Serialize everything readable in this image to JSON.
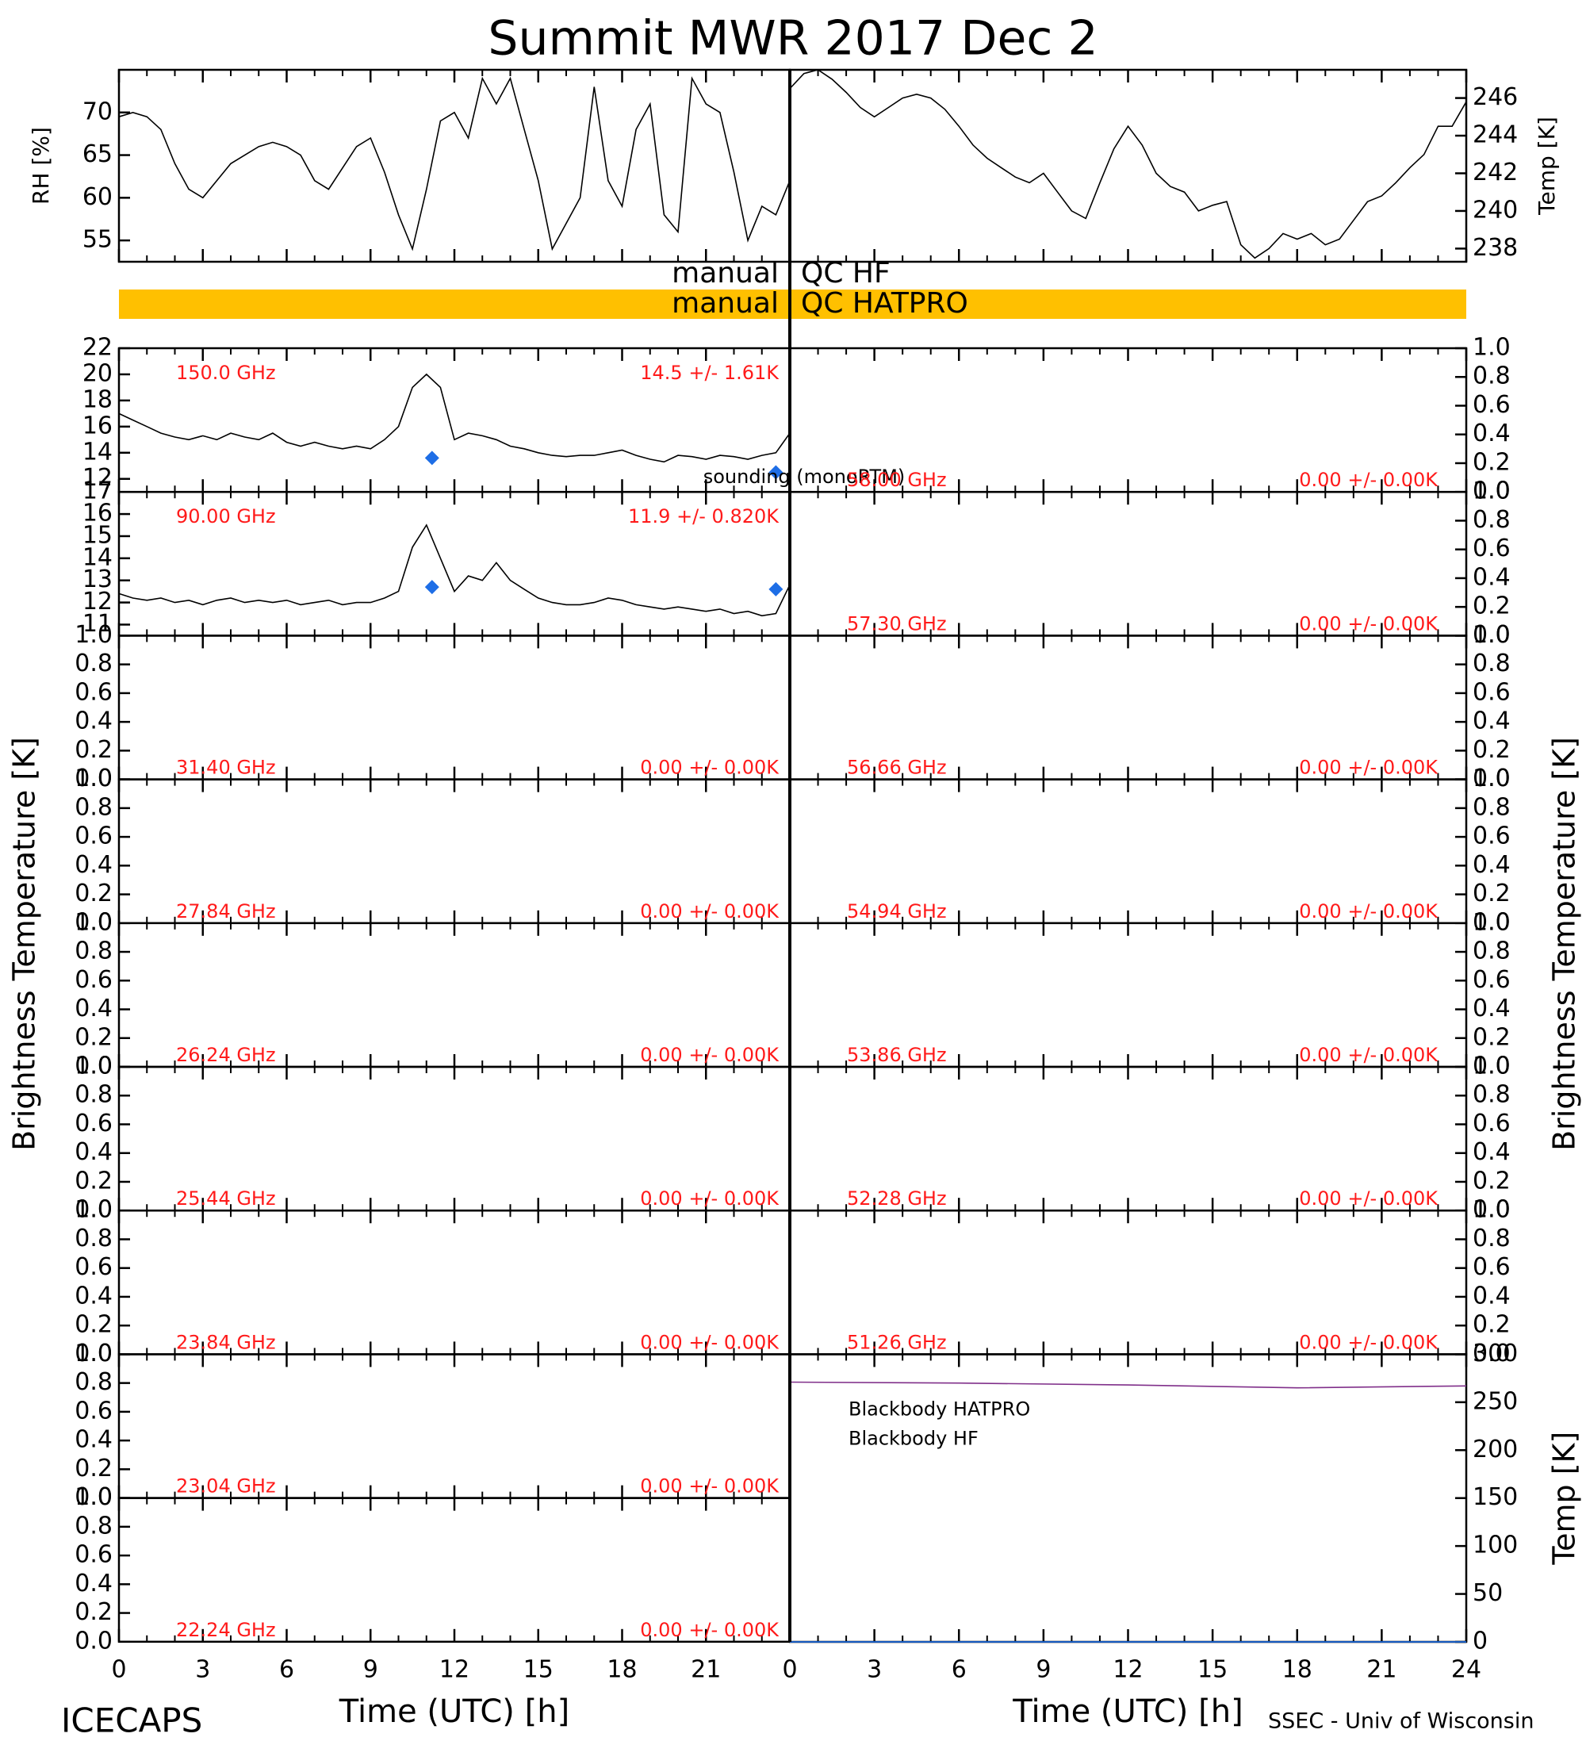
{
  "title": "Summit MWR 2017 Dec  2",
  "ylabel_left": "Brightness Temperature [K]",
  "ylabel_right": "Brightness Temperature [K]",
  "footer_left": "ICECAPS",
  "footer_right": "SSEC - Univ of Wisconsin",
  "qc": [
    {
      "label": "manual",
      "name": "QC HF"
    },
    {
      "label": "manual",
      "name": "QC HATPRO",
      "color": "#ffc000"
    }
  ],
  "chart_data": [
    {
      "type": "line",
      "ylabel": "RH [%]",
      "xlim": [
        0,
        24
      ],
      "ylim": [
        52.5,
        75
      ],
      "yticks": [
        55,
        60,
        65,
        70
      ],
      "x": [
        0,
        0.5,
        1,
        1.5,
        2,
        2.5,
        3,
        3.5,
        4,
        4.5,
        5,
        5.5,
        6,
        6.5,
        7,
        7.5,
        8,
        8.5,
        9,
        9.5,
        10,
        10.5,
        11,
        11.5,
        12,
        12.5,
        13,
        13.5,
        14,
        14.5,
        15,
        15.5,
        16,
        16.5,
        17,
        17.5,
        18,
        18.5,
        19,
        19.5,
        20,
        20.5,
        21,
        21.5,
        22,
        22.5,
        23,
        23.5,
        24
      ],
      "series": [
        {
          "color": "#000000",
          "values": [
            69.5,
            70,
            69.5,
            68,
            64,
            61,
            60,
            62,
            64,
            65,
            66,
            66.5,
            66,
            65,
            62,
            61,
            63.5,
            66,
            67,
            63,
            58,
            54,
            61,
            69,
            70,
            67,
            74,
            71,
            74,
            68,
            62,
            54,
            57,
            60,
            73,
            62,
            59,
            68,
            71,
            58,
            56,
            74,
            71,
            70,
            63,
            55,
            59,
            58,
            62
          ]
        }
      ]
    },
    {
      "type": "line",
      "ylabel": "Temp [K]",
      "xlim": [
        0,
        24
      ],
      "ylim": [
        237.3,
        247.5
      ],
      "yticks": [
        238,
        240,
        242,
        244,
        246
      ],
      "x": [
        0,
        0.5,
        1,
        1.5,
        2,
        2.5,
        3,
        3.5,
        4,
        4.5,
        5,
        5.5,
        6,
        6.5,
        7,
        7.5,
        8,
        8.5,
        9,
        9.5,
        10,
        10.5,
        11,
        11.5,
        12,
        12.5,
        13,
        13.5,
        14,
        14.5,
        15,
        15.5,
        16,
        16.5,
        17,
        17.5,
        18,
        18.5,
        19,
        19.5,
        20,
        20.5,
        21,
        21.5,
        22,
        22.5,
        23,
        23.5,
        24
      ],
      "series": [
        {
          "color": "#000000",
          "values": [
            246.5,
            247.3,
            247.5,
            247,
            246.3,
            245.5,
            245,
            245.5,
            246,
            246.2,
            246,
            245.4,
            244.5,
            243.5,
            242.8,
            242.3,
            241.8,
            241.5,
            242,
            241,
            240,
            239.6,
            241.5,
            243.3,
            244.5,
            243.5,
            242,
            241.3,
            241,
            240,
            240.3,
            240.5,
            238.2,
            237.5,
            238,
            238.8,
            238.5,
            238.8,
            238.2,
            238.5,
            239.5,
            240.5,
            240.8,
            241.5,
            242.3,
            243,
            244.5,
            244.5,
            245.8
          ]
        }
      ]
    },
    {
      "type": "line",
      "label": "150.0 GHz",
      "stats": "14.5 +/-  1.61K",
      "legend": "lower right",
      "xlim": [
        0,
        24
      ],
      "ylim": [
        11,
        22
      ],
      "yticks": [
        12,
        14,
        16,
        18,
        20,
        22
      ],
      "x": [
        0,
        0.5,
        1,
        1.5,
        2,
        2.5,
        3,
        3.5,
        4,
        4.5,
        5,
        5.5,
        6,
        6.5,
        7,
        7.5,
        8,
        8.5,
        9,
        9.5,
        10,
        10.5,
        11,
        11.5,
        12,
        12.5,
        13,
        13.5,
        14,
        14.5,
        15,
        15.5,
        16,
        16.5,
        17,
        17.5,
        18,
        18.5,
        19,
        19.5,
        20,
        20.5,
        21,
        21.5,
        22,
        22.5,
        23,
        23.5,
        24
      ],
      "series": [
        {
          "color": "#000000",
          "values": [
            17,
            16.5,
            16,
            15.5,
            15.2,
            15,
            15.3,
            15,
            15.5,
            15.2,
            15,
            15.5,
            14.8,
            14.5,
            14.8,
            14.5,
            14.3,
            14.5,
            14.3,
            15,
            16,
            19,
            20,
            19,
            15,
            15.5,
            15.3,
            15,
            14.5,
            14.3,
            14,
            13.8,
            13.7,
            13.8,
            13.8,
            14,
            14.2,
            13.8,
            13.5,
            13.3,
            13.8,
            13.7,
            13.5,
            13.8,
            13.7,
            13.5,
            13.8,
            14,
            15.5
          ]
        },
        {
          "name": "sounding (monoRTM)",
          "color": "#1e6ee6",
          "marker": "diamond",
          "x": [
            11.2,
            23.5
          ],
          "values": [
            13.6,
            12.5
          ]
        }
      ]
    },
    {
      "type": "line",
      "label": "90.00 GHz",
      "stats": "11.9 +/- 0.820K",
      "xlim": [
        0,
        24
      ],
      "ylim": [
        10.5,
        17
      ],
      "yticks": [
        11,
        12,
        13,
        14,
        15,
        16,
        17
      ],
      "x": [
        0,
        0.5,
        1,
        1.5,
        2,
        2.5,
        3,
        3.5,
        4,
        4.5,
        5,
        5.5,
        6,
        6.5,
        7,
        7.5,
        8,
        8.5,
        9,
        9.5,
        10,
        10.5,
        11,
        11.5,
        12,
        12.5,
        13,
        13.5,
        14,
        14.5,
        15,
        15.5,
        16,
        16.5,
        17,
        17.5,
        18,
        18.5,
        19,
        19.5,
        20,
        20.5,
        21,
        21.5,
        22,
        22.5,
        23,
        23.5,
        24
      ],
      "series": [
        {
          "color": "#000000",
          "values": [
            12.4,
            12.2,
            12.1,
            12.2,
            12,
            12.1,
            11.9,
            12.1,
            12.2,
            12,
            12.1,
            12,
            12.1,
            11.9,
            12,
            12.1,
            11.9,
            12,
            12,
            12.2,
            12.5,
            14.5,
            15.5,
            14,
            12.5,
            13.2,
            13,
            13.8,
            13,
            12.6,
            12.2,
            12,
            11.9,
            11.9,
            12,
            12.2,
            12.1,
            11.9,
            11.8,
            11.7,
            11.8,
            11.7,
            11.6,
            11.7,
            11.5,
            11.6,
            11.4,
            11.5,
            12.8
          ]
        },
        {
          "color": "#1e6ee6",
          "marker": "diamond",
          "x": [
            11.2,
            23.5
          ],
          "values": [
            12.7,
            12.6
          ]
        }
      ]
    },
    {
      "type": "line",
      "label": "31.40 GHz",
      "stats": "0.00 +/- 0.00K",
      "ylim": [
        0,
        1
      ],
      "yticks": [
        {
          "value": 0,
          "label": "0.0"
        },
        0.2,
        0.4,
        0.6,
        0.8,
        {
          "value": 1,
          "label": "1.0"
        }
      ]
    },
    {
      "type": "line",
      "label": "27.84 GHz",
      "stats": "0.00 +/- 0.00K",
      "ylim": [
        0,
        1
      ],
      "yticks": [
        {
          "value": 0,
          "label": "0.0"
        },
        0.2,
        0.4,
        0.6,
        0.8,
        {
          "value": 1,
          "label": "1.0"
        }
      ]
    },
    {
      "type": "line",
      "label": "26.24 GHz",
      "stats": "0.00 +/- 0.00K",
      "ylim": [
        0,
        1
      ],
      "yticks": [
        {
          "value": 0,
          "label": "0.0"
        },
        0.2,
        0.4,
        0.6,
        0.8,
        {
          "value": 1,
          "label": "1.0"
        }
      ]
    },
    {
      "type": "line",
      "label": "25.44 GHz",
      "stats": "0.00 +/- 0.00K",
      "ylim": [
        0,
        1
      ],
      "yticks": [
        {
          "value": 0,
          "label": "0.0"
        },
        0.2,
        0.4,
        0.6,
        0.8,
        {
          "value": 1,
          "label": "1.0"
        }
      ]
    },
    {
      "type": "line",
      "label": "23.84 GHz",
      "stats": "0.00 +/- 0.00K",
      "ylim": [
        0,
        1
      ],
      "yticks": [
        {
          "value": 0,
          "label": "0.0"
        },
        0.2,
        0.4,
        0.6,
        0.8,
        {
          "value": 1,
          "label": "1.0"
        }
      ]
    },
    {
      "type": "line",
      "label": "23.04 GHz",
      "stats": "0.00 +/- 0.00K",
      "ylim": [
        0,
        1
      ],
      "yticks": [
        {
          "value": 0,
          "label": "0.0"
        },
        0.2,
        0.4,
        0.6,
        0.8,
        {
          "value": 1,
          "label": "1.0"
        }
      ]
    },
    {
      "type": "line",
      "label": "22.24 GHz",
      "stats": "0.00 +/- 0.00K",
      "ylim": [
        0,
        1
      ],
      "yticks": [
        {
          "value": 0,
          "label": "0.0"
        },
        0.2,
        0.4,
        0.6,
        0.8,
        {
          "value": 1,
          "label": "1.0"
        }
      ],
      "xlim": [
        0,
        24
      ],
      "xticks": [
        0,
        3,
        6,
        9,
        12,
        15,
        18,
        21
      ],
      "xlabel": "Time (UTC) [h]"
    },
    {
      "type": "line",
      "label": "58.00 GHz",
      "stats": "0.00 +/- 0.00K",
      "ylim": [
        0,
        1
      ],
      "yticks": [
        {
          "value": 0,
          "label": "0.0"
        },
        0.2,
        0.4,
        0.6,
        0.8,
        {
          "value": 1,
          "label": "1.0"
        }
      ]
    },
    {
      "type": "line",
      "label": "57.30 GHz",
      "stats": "0.00 +/- 0.00K",
      "ylim": [
        0,
        1
      ],
      "yticks": [
        {
          "value": 0,
          "label": "0.0"
        },
        0.2,
        0.4,
        0.6,
        0.8,
        {
          "value": 1,
          "label": "1.0"
        }
      ]
    },
    {
      "type": "line",
      "label": "56.66 GHz",
      "stats": "0.00 +/- 0.00K",
      "ylim": [
        0,
        1
      ],
      "yticks": [
        {
          "value": 0,
          "label": "0.0"
        },
        0.2,
        0.4,
        0.6,
        0.8,
        {
          "value": 1,
          "label": "1.0"
        }
      ]
    },
    {
      "type": "line",
      "label": "54.94 GHz",
      "stats": "0.00 +/- 0.00K",
      "ylim": [
        0,
        1
      ],
      "yticks": [
        {
          "value": 0,
          "label": "0.0"
        },
        0.2,
        0.4,
        0.6,
        0.8,
        {
          "value": 1,
          "label": "1.0"
        }
      ]
    },
    {
      "type": "line",
      "label": "53.86 GHz",
      "stats": "0.00 +/- 0.00K",
      "ylim": [
        0,
        1
      ],
      "yticks": [
        {
          "value": 0,
          "label": "0.0"
        },
        0.2,
        0.4,
        0.6,
        0.8,
        {
          "value": 1,
          "label": "1.0"
        }
      ]
    },
    {
      "type": "line",
      "label": "52.28 GHz",
      "stats": "0.00 +/- 0.00K",
      "ylim": [
        0,
        1
      ],
      "yticks": [
        {
          "value": 0,
          "label": "0.0"
        },
        0.2,
        0.4,
        0.6,
        0.8,
        {
          "value": 1,
          "label": "1.0"
        }
      ]
    },
    {
      "type": "line",
      "label": "51.26 GHz",
      "stats": "0.00 +/- 0.00K",
      "ylim": [
        0,
        1
      ],
      "yticks": [
        {
          "value": 0,
          "label": "0.0"
        },
        0.2,
        0.4,
        0.6,
        0.8,
        {
          "value": 1,
          "label": "1.0"
        }
      ]
    },
    {
      "type": "line",
      "ylabel": "Temp [K]",
      "legend": "upper left",
      "xlim": [
        0,
        24
      ],
      "xticks": [
        0,
        3,
        6,
        9,
        12,
        15,
        18,
        21,
        24
      ],
      "xlabel": "Time (UTC) [h]",
      "ylim": [
        0,
        300
      ],
      "yticks": [
        0,
        50,
        100,
        150,
        200,
        250,
        300
      ],
      "x": [
        0,
        6,
        12,
        18,
        24
      ],
      "series": [
        {
          "name": "Blackbody HATPRO",
          "color": "#1e78ff",
          "values": [
            0,
            0,
            0,
            0,
            0
          ]
        },
        {
          "name": "Blackbody HF",
          "color": "#80308a",
          "values": [
            271,
            270,
            268,
            265,
            267
          ]
        }
      ]
    }
  ]
}
